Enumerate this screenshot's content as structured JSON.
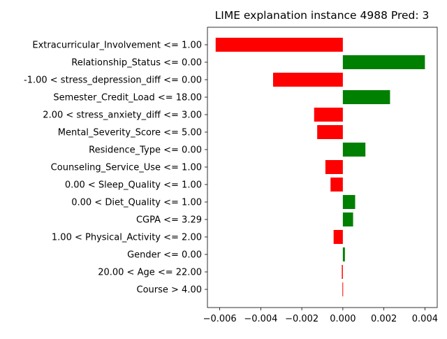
{
  "chart_data": {
    "type": "bar",
    "orientation": "horizontal",
    "title": "LIME explanation instance 4988 Pred: 3",
    "xlabel": "",
    "ylabel": "",
    "xlim": [
      -0.0066,
      0.0046
    ],
    "grid": false,
    "x_ticks": [
      {
        "value": -0.006,
        "label": "−0.006"
      },
      {
        "value": -0.004,
        "label": "−0.004"
      },
      {
        "value": -0.002,
        "label": "−0.002"
      },
      {
        "value": 0.0,
        "label": "0.000"
      },
      {
        "value": 0.002,
        "label": "0.002"
      },
      {
        "value": 0.004,
        "label": "0.004"
      }
    ],
    "categories": [
      "Extracurricular_Involvement <= 1.00",
      "Relationship_Status <= 0.00",
      "-1.00 < stress_depression_diff <= 0.00",
      "Semester_Credit_Load <= 18.00",
      "2.00 < stress_anxiety_diff <= 3.00",
      "Mental_Severity_Score <= 5.00",
      "Residence_Type <= 0.00",
      "Counseling_Service_Use <= 1.00",
      "0.00 < Sleep_Quality <= 1.00",
      "0.00 < Diet_Quality <= 1.00",
      "CGPA <= 3.29",
      "1.00 < Physical_Activity <= 2.00",
      "Gender <= 0.00",
      "20.00 < Age <= 22.00",
      "Course > 4.00"
    ],
    "values": [
      -0.0062,
      0.004,
      -0.0034,
      0.0023,
      -0.0014,
      -0.00125,
      0.0011,
      -0.00085,
      -0.0006,
      0.0006,
      0.0005,
      -0.00045,
      0.0001,
      -5e-05,
      -2e-05
    ],
    "colors": {
      "positive": "#008000",
      "negative": "#ff0000",
      "axis": "#000000"
    }
  }
}
